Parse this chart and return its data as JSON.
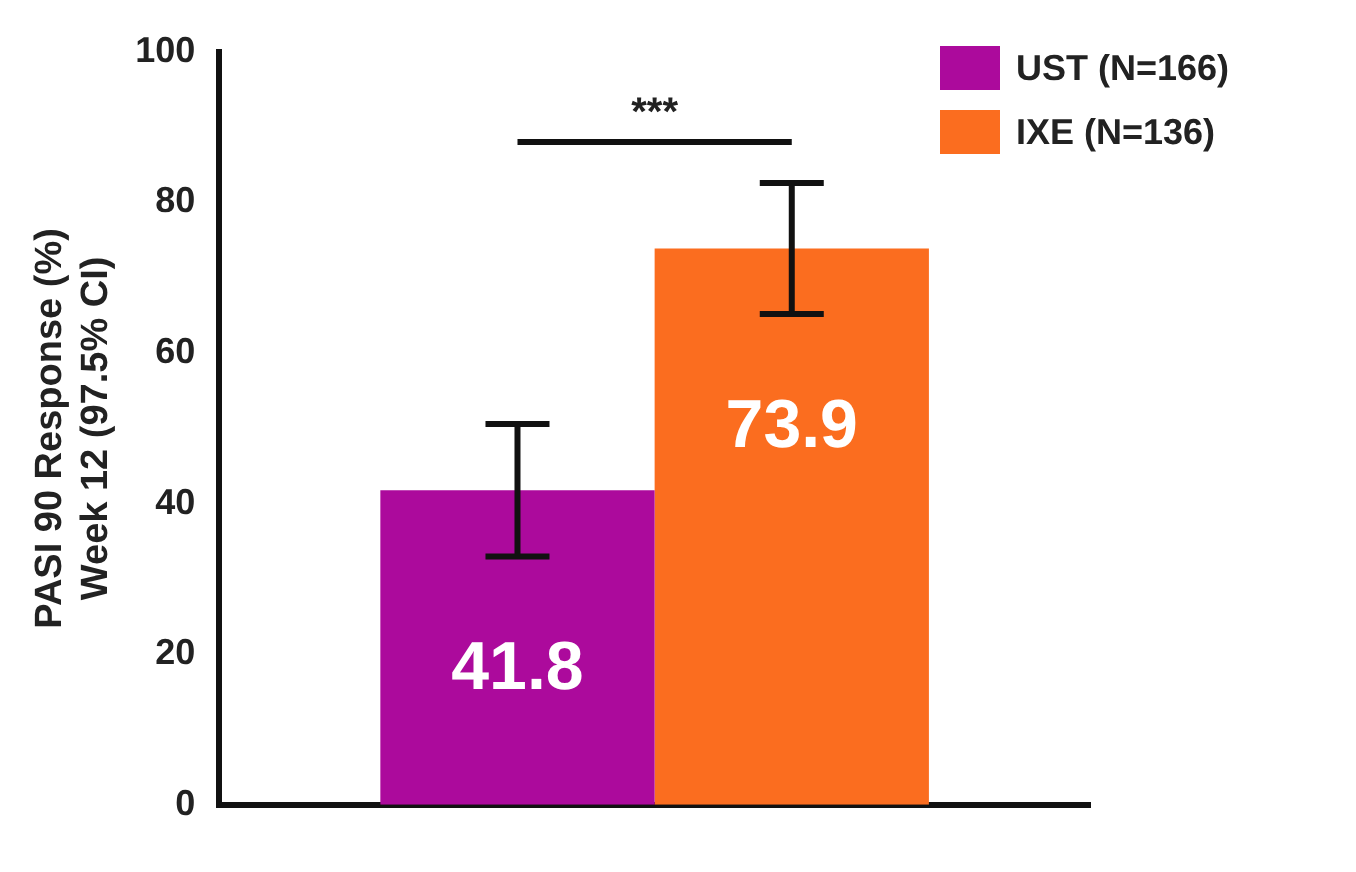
{
  "chart_data": {
    "type": "bar",
    "ylabel": "PASI 90 Response (%)\nWeek 12 (97.5% CI)",
    "categories": [
      null
    ],
    "series": [
      {
        "name": "UST (N=166)",
        "color": "#ac0a9c",
        "values": [
          41.8
        ],
        "errors": [
          [
            33.0,
            50.6
          ]
        ]
      },
      {
        "name": "IXE (N=136)",
        "color": "#fb6d1f",
        "values": [
          73.9
        ],
        "errors": [
          [
            65.2,
            82.6
          ]
        ]
      }
    ],
    "ylim": [
      0,
      100
    ],
    "yticks": [
      0,
      20,
      40,
      60,
      80,
      100
    ],
    "grid": false,
    "legend": "top right",
    "data_labels": true,
    "annotations": [
      "***"
    ]
  }
}
